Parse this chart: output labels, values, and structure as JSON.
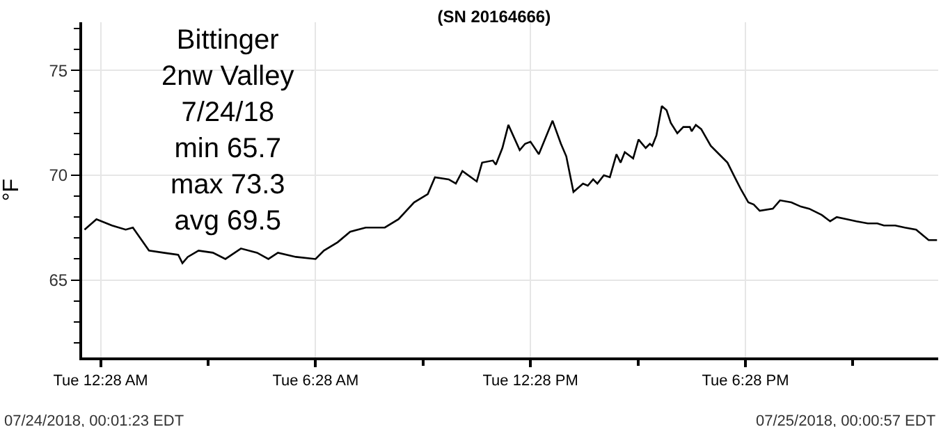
{
  "chart_data": {
    "type": "line",
    "title": "(SN 20164666)",
    "ylabel": "°F",
    "annotations": [
      "Bittinger\n2nw Valley\n7/24/18\nmin 65.7\nmax 73.3\navg 69.5",
      "07/24/2018, 00:01:23 EDT",
      "07/25/2018, 00:00:57 EDT"
    ],
    "x": [
      "2018-07-24T00:01",
      "2018-07-24T00:21",
      "2018-07-24T00:47",
      "2018-07-24T01:10",
      "2018-07-24T01:22",
      "2018-07-24T01:49",
      "2018-07-24T02:13",
      "2018-07-24T02:38",
      "2018-07-24T02:45",
      "2018-07-24T02:54",
      "2018-07-24T03:12",
      "2018-07-24T03:36",
      "2018-07-24T03:57",
      "2018-07-24T04:23",
      "2018-07-24T04:50",
      "2018-07-24T05:09",
      "2018-07-24T05:25",
      "2018-07-24T05:55",
      "2018-07-24T06:28",
      "2018-07-24T06:42",
      "2018-07-24T07:05",
      "2018-07-24T07:26",
      "2018-07-24T07:52",
      "2018-07-24T08:24",
      "2018-07-24T08:47",
      "2018-07-24T09:13",
      "2018-07-24T09:36",
      "2018-07-24T09:48",
      "2018-07-24T10:11",
      "2018-07-24T10:23",
      "2018-07-24T10:34",
      "2018-07-24T10:58",
      "2018-07-24T11:07",
      "2018-07-24T11:25",
      "2018-07-24T11:30",
      "2018-07-24T11:41",
      "2018-07-24T11:51",
      "2018-07-24T12:10",
      "2018-07-24T12:19",
      "2018-07-24T12:28",
      "2018-07-24T12:42",
      "2018-07-24T13:05",
      "2018-07-24T13:19",
      "2018-07-24T13:28",
      "2018-07-24T13:40",
      "2018-07-24T13:56",
      "2018-07-24T14:04",
      "2018-07-24T14:13",
      "2018-07-24T14:20",
      "2018-07-24T14:31",
      "2018-07-24T14:41",
      "2018-07-24T14:52",
      "2018-07-24T14:59",
      "2018-07-24T15:06",
      "2018-07-24T15:20",
      "2018-07-24T15:29",
      "2018-07-24T15:41",
      "2018-07-24T15:48",
      "2018-07-24T15:52",
      "2018-07-24T15:59",
      "2018-07-24T16:08",
      "2018-07-24T16:16",
      "2018-07-24T16:23",
      "2018-07-24T16:34",
      "2018-07-24T16:44",
      "2018-07-24T16:55",
      "2018-07-24T16:58",
      "2018-07-24T17:05",
      "2018-07-24T17:14",
      "2018-07-24T17:30",
      "2018-07-24T17:44",
      "2018-07-24T17:58",
      "2018-07-24T18:12",
      "2018-07-24T18:21",
      "2018-07-24T18:33",
      "2018-07-24T18:42",
      "2018-07-24T18:52",
      "2018-07-24T19:14",
      "2018-07-24T19:26",
      "2018-07-24T19:45",
      "2018-07-24T20:01",
      "2018-07-24T20:15",
      "2018-07-24T20:36",
      "2018-07-24T20:50",
      "2018-07-24T21:01",
      "2018-07-24T21:18",
      "2018-07-24T21:34",
      "2018-07-24T21:53",
      "2018-07-24T22:09",
      "2018-07-24T22:20",
      "2018-07-24T22:39",
      "2018-07-24T22:55",
      "2018-07-24T23:14",
      "2018-07-24T23:35",
      "2018-07-24T23:49"
    ],
    "series": [
      {
        "color": "#000000",
        "values": [
          67.4,
          67.9,
          67.6,
          67.4,
          67.5,
          66.4,
          66.3,
          66.2,
          65.8,
          66.1,
          66.4,
          66.3,
          66.0,
          66.5,
          66.3,
          66.0,
          66.3,
          66.1,
          66.0,
          66.4,
          66.8,
          67.3,
          67.5,
          67.5,
          67.9,
          68.7,
          69.1,
          69.9,
          69.8,
          69.6,
          70.2,
          69.7,
          70.6,
          70.7,
          70.5,
          71.3,
          72.4,
          71.2,
          71.5,
          71.6,
          71.0,
          72.6,
          71.5,
          70.9,
          69.2,
          69.6,
          69.5,
          69.8,
          69.6,
          70.0,
          69.9,
          71.0,
          70.6,
          71.1,
          70.8,
          71.7,
          71.3,
          71.5,
          71.4,
          71.9,
          73.3,
          73.1,
          72.5,
          72.0,
          72.3,
          72.3,
          72.1,
          72.4,
          72.2,
          71.4,
          71.0,
          70.6,
          69.8,
          69.3,
          68.7,
          68.6,
          68.3,
          68.4,
          68.8,
          68.7,
          68.5,
          68.4,
          68.1,
          67.8,
          68.0,
          67.9,
          67.8,
          67.7,
          67.7,
          67.6,
          67.6,
          67.5,
          67.4,
          66.9,
          66.9
        ]
      }
    ],
    "xlim": [
      "2018-07-23T23:57",
      "2018-07-24T23:51"
    ],
    "xticks": [
      {
        "value": "2018-07-24T00:28",
        "label": "Tue 12:28 AM"
      },
      {
        "value": "2018-07-24T03:28",
        "label": null
      },
      {
        "value": "2018-07-24T06:28",
        "label": "Tue 6:28 AM"
      },
      {
        "value": "2018-07-24T09:28",
        "label": null
      },
      {
        "value": "2018-07-24T12:28",
        "label": "Tue 12:28 PM"
      },
      {
        "value": "2018-07-24T15:28",
        "label": null
      },
      {
        "value": "2018-07-24T18:28",
        "label": "Tue 6:28 PM"
      },
      {
        "value": "2018-07-24T21:28",
        "label": null
      }
    ],
    "ylim": [
      61.3,
      77.3
    ],
    "yticks": [
      {
        "value": 62,
        "label": null
      },
      {
        "value": 63,
        "label": null
      },
      {
        "value": 64,
        "label": null
      },
      65,
      {
        "value": 66,
        "label": null
      },
      {
        "value": 67,
        "label": null
      },
      {
        "value": 68,
        "label": null
      },
      {
        "value": 69,
        "label": null
      },
      70,
      {
        "value": 71,
        "label": null
      },
      {
        "value": 72,
        "label": null
      },
      {
        "value": 73,
        "label": null
      },
      {
        "value": 74,
        "label": null
      },
      75,
      {
        "value": 76,
        "label": null
      },
      {
        "value": 77,
        "label": null
      }
    ],
    "grid": true,
    "marker": "none",
    "line_style": "solid"
  }
}
